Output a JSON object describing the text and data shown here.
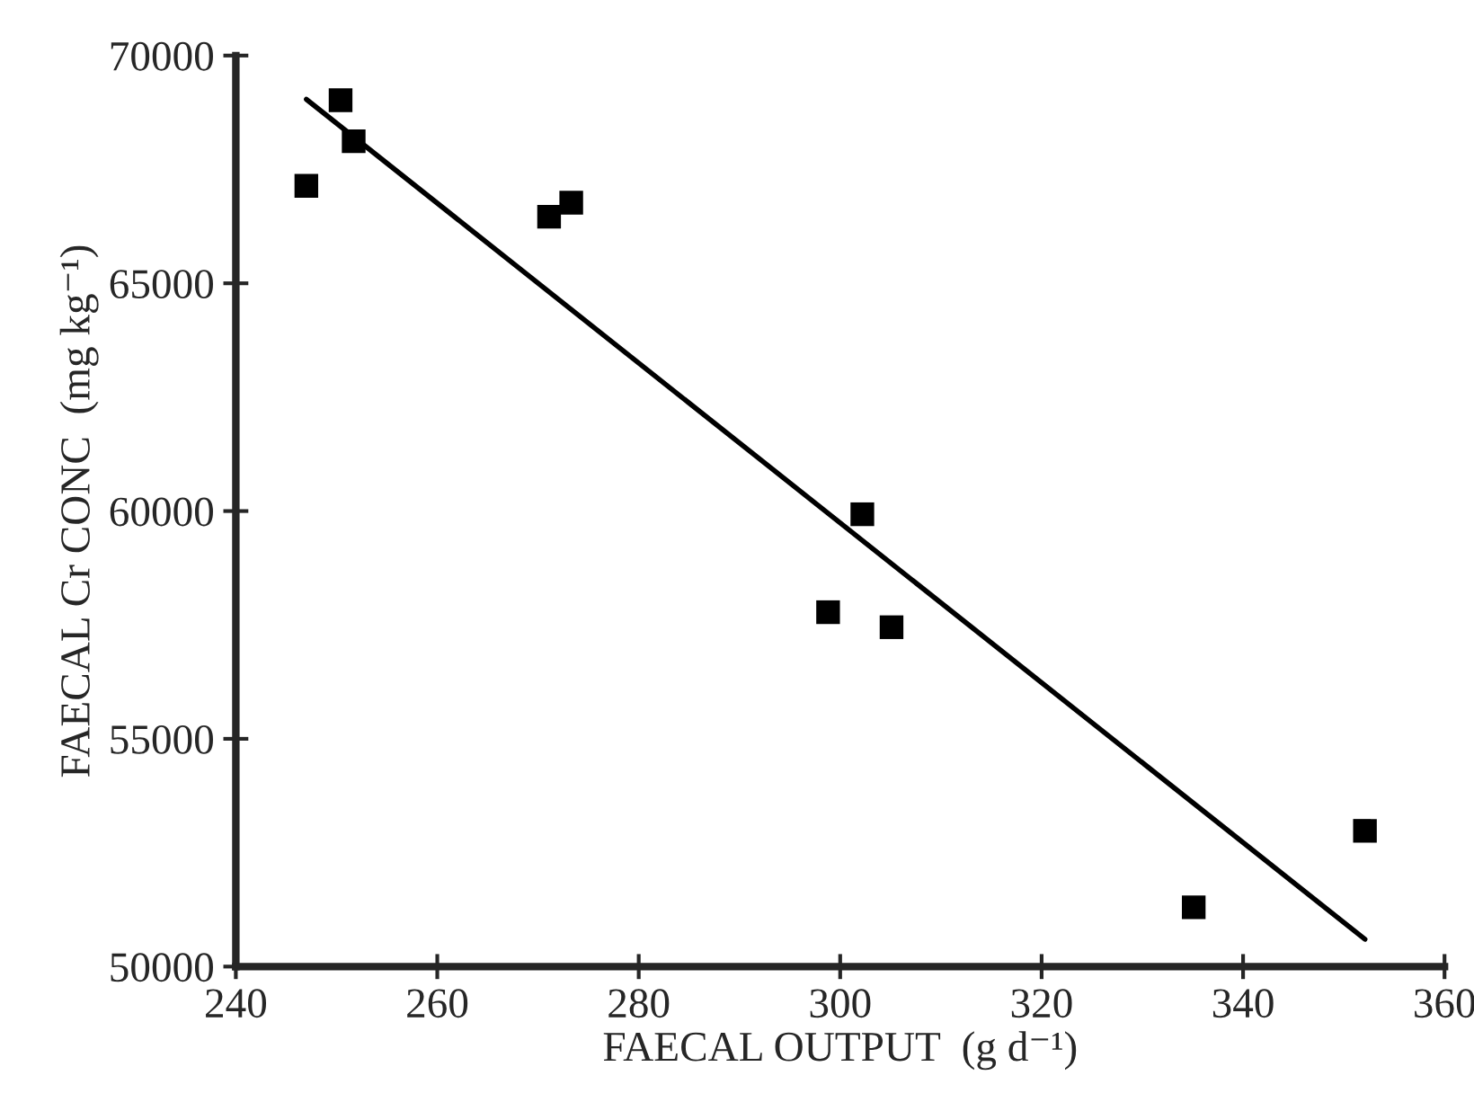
{
  "chart_data": {
    "type": "scatter",
    "xlabel": "FAECAL OUTPUT  (g d⁻¹)",
    "ylabel": "FAECAL Cr CONC  (mg kg⁻¹)",
    "xlim": [
      240,
      360
    ],
    "xticks": [
      240,
      260,
      280,
      300,
      320,
      340,
      360
    ],
    "ylim": [
      50000,
      70000
    ],
    "yticks": [
      50000,
      55000,
      60000,
      65000,
      70000
    ],
    "grid": false,
    "legend": false,
    "series": [
      {
        "color": "#000000",
        "marker": "square",
        "x": [
          247,
          250.4,
          251.7,
          271.1,
          273.3,
          302.2,
          298.8,
          305.1,
          335.1,
          352.1
        ],
        "values": [
          67140,
          69020,
          68120,
          66460,
          66770,
          59930,
          57780,
          57450,
          51300,
          52980
        ]
      },
      {
        "type": "line",
        "color": "#000000",
        "line_style": "solid",
        "x": [
          247,
          352.1
        ],
        "values": [
          69040,
          50600
        ]
      }
    ]
  }
}
